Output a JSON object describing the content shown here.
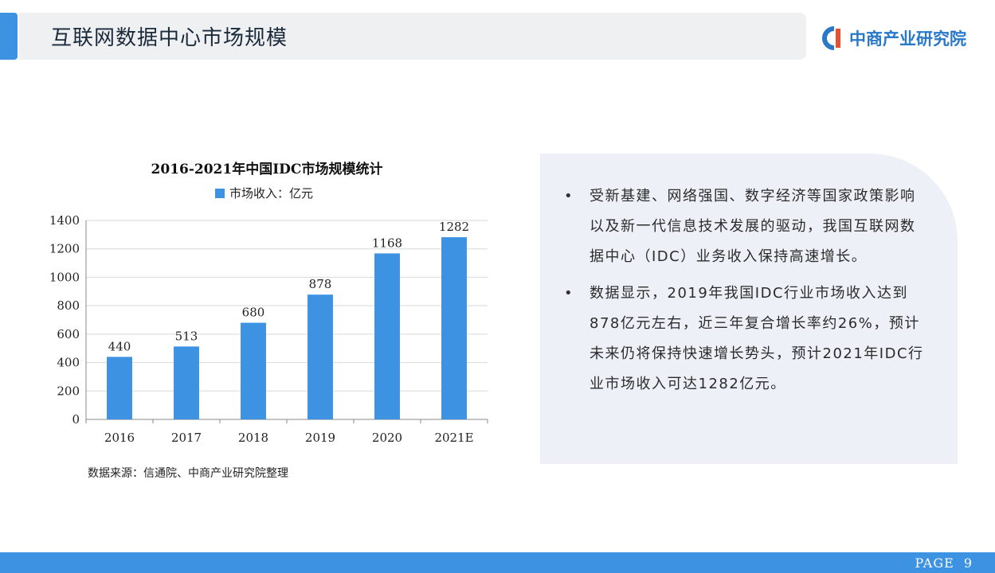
{
  "header": {
    "title": "互联网数据中心市场规模",
    "logo_text": "中商产业研究院"
  },
  "chart_data": {
    "type": "bar",
    "title": "2016-2021年中国IDC市场规模统计",
    "categories": [
      "2016",
      "2017",
      "2018",
      "2019",
      "2020",
      "2021E"
    ],
    "series": [
      {
        "name": "市场收入：亿元",
        "values": [
          440,
          513,
          680,
          878,
          1168,
          1282
        ],
        "color": "#3d92e2"
      }
    ],
    "ylim": [
      0,
      1400
    ],
    "yticks": [
      0,
      200,
      400,
      600,
      800,
      1000,
      1200,
      1400
    ],
    "grid": true,
    "legend": "top"
  },
  "source_note": "数据来源：信通院、中商产业研究院整理",
  "bullets": [
    {
      "dot": "•",
      "text": "受新基建、网络强国、数字经济等国家政策影响以及新一代信息技术发展的驱动，我国互联网数据中心（IDC）业务收入保持高速增长。"
    },
    {
      "dot": "•",
      "text": "数据显示，2019年我国IDC行业市场收入达到878亿元左右，近三年复合增长率约26%，预计未来仍将保持快速增长势头，预计2021年IDC行业市场收入可达1282亿元。"
    }
  ],
  "footer": {
    "page_label": "PAGE",
    "page_number": "9"
  },
  "colors": {
    "accent": "#3d92e2",
    "panel": "#edf1f7",
    "header_bar": "#eef0f2"
  }
}
